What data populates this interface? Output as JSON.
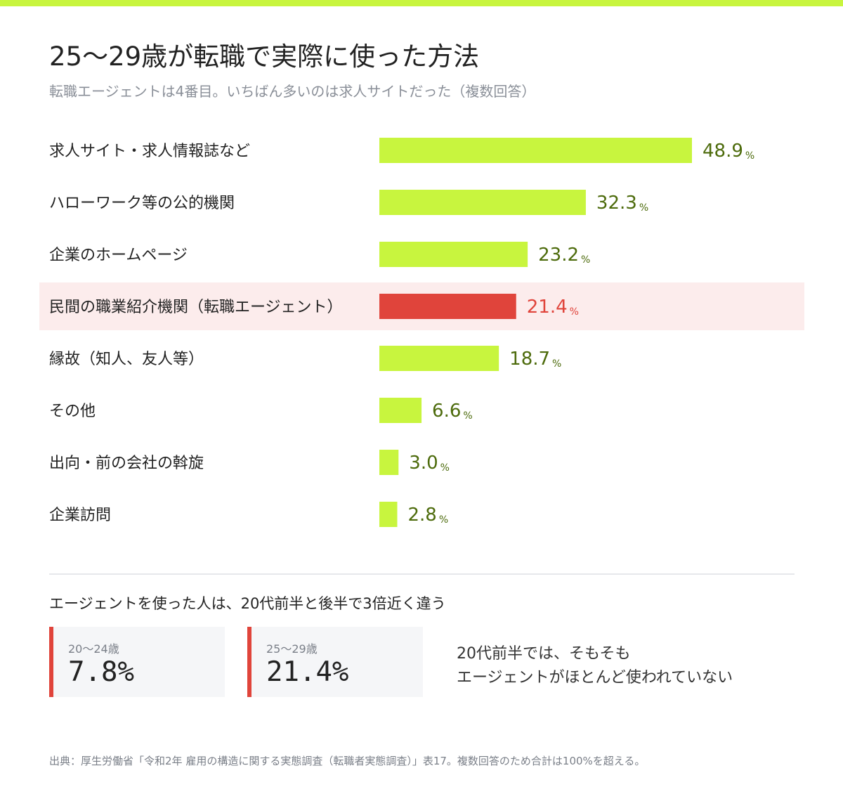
{
  "header": {
    "title": "25〜29歳が転職で実際に使った方法",
    "subtitle": "転職エージェントは4番目。いちばん多いのは求人サイトだった（複数回答）"
  },
  "colors": {
    "accent": "#c8f53e",
    "highlight": "#e0443b",
    "highlight_bg": "#fcecec",
    "value_text": "#4d6b0c"
  },
  "chart_data": {
    "type": "bar",
    "orientation": "horizontal",
    "unit": "%",
    "xlim": [
      0,
      100
    ],
    "categories": [
      "求人サイト・求人情報誌など",
      "ハローワーク等の公的機関",
      "企業のホームページ",
      "民間の職業紹介機関（転職エージェント）",
      "縁故（知人、友人等）",
      "その他",
      "出向・前の会社の斡旋",
      "企業訪問"
    ],
    "values": [
      48.9,
      32.3,
      23.2,
      21.4,
      18.7,
      6.6,
      3.0,
      2.8
    ],
    "value_labels": [
      "48.9",
      "32.3",
      "23.2",
      "21.4",
      "18.7",
      "6.6",
      "3.0",
      "2.8"
    ],
    "highlight_index": 3,
    "grid": false
  },
  "comparison": {
    "title": "エージェントを使った人は、20代前半と後半で3倍近く違う",
    "stats": [
      {
        "label": "20〜24歳",
        "value": "7.8%"
      },
      {
        "label": "25〜29歳",
        "value": "21.4%"
      }
    ],
    "note_line1": "20代前半では、そもそも",
    "note_line2": "エージェントがほとんど使われていない"
  },
  "source": "出典：厚生労働省「令和2年 雇用の構造に関する実態調査（転職者実態調査）」表17。複数回答のため合計は100%を超える。"
}
